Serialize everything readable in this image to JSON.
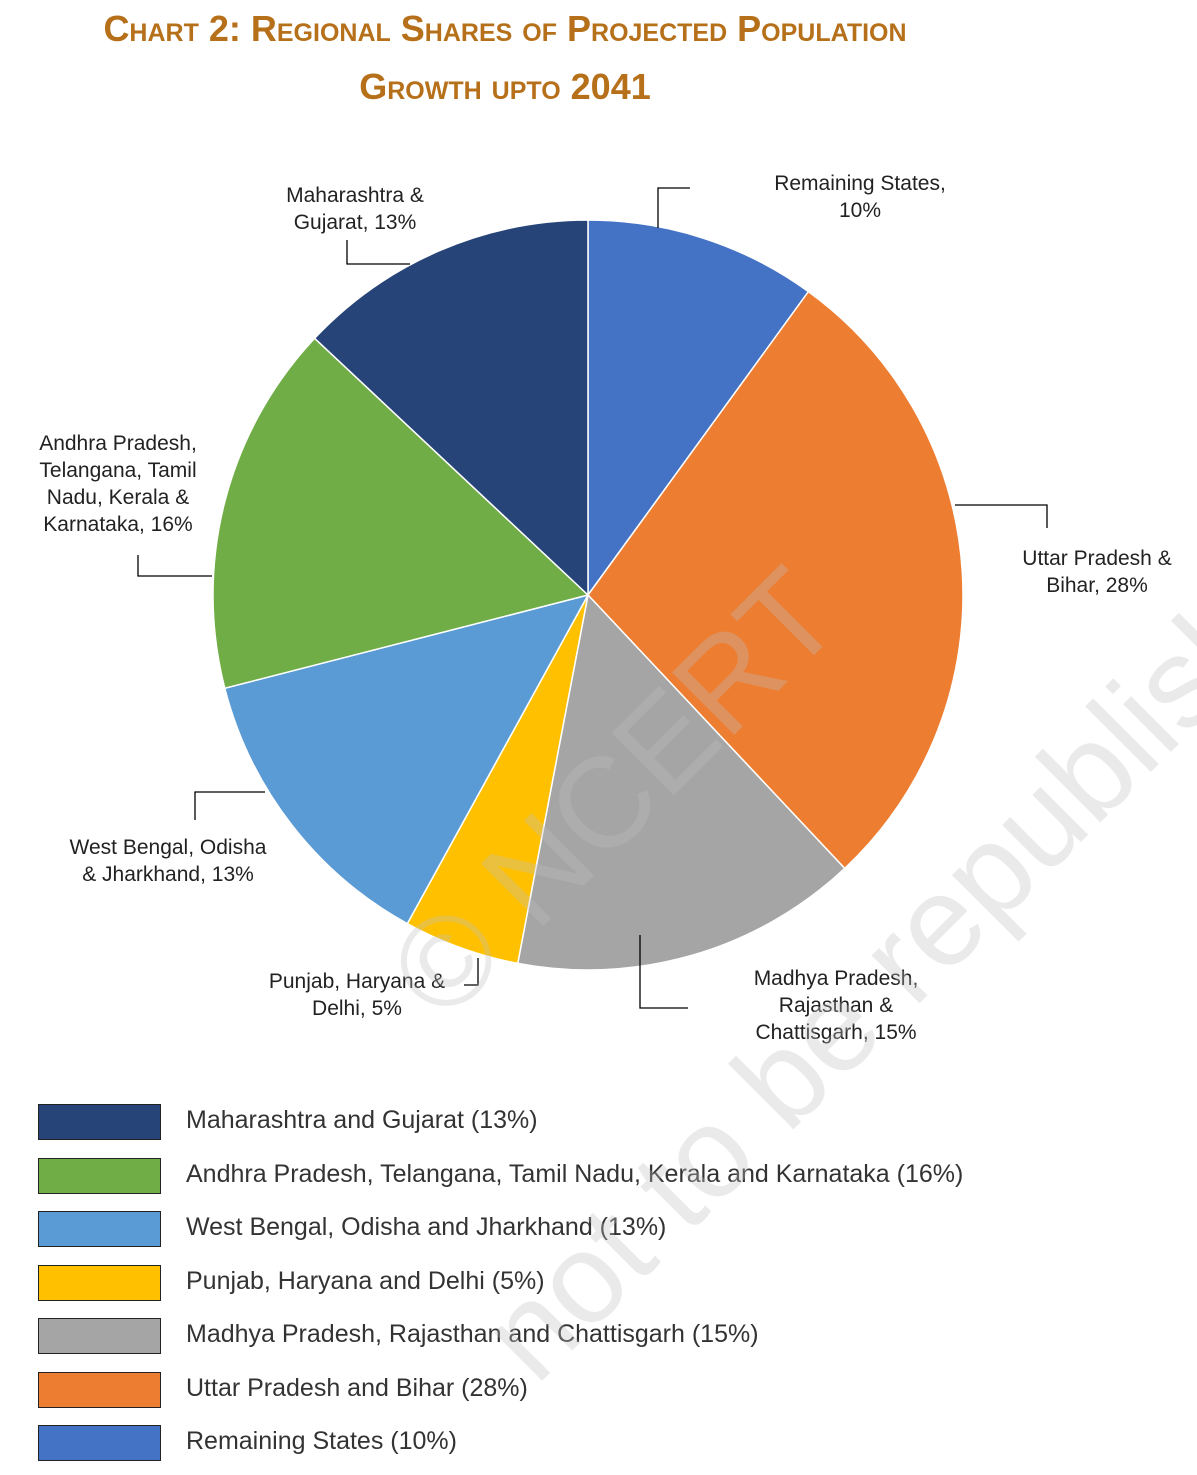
{
  "chart_data": {
    "type": "pie",
    "title_line1": "Chart 2: Regional Shares of Projected Population",
    "title_line2": "Growth upto 2041",
    "slices": [
      {
        "label_lines": [
          "Remaining States,",
          "10%"
        ],
        "value": 10,
        "color": "#4472c4",
        "legend": "Remaining States (10%)"
      },
      {
        "label_lines": [
          "Uttar Pradesh &",
          "Bihar, 28%"
        ],
        "value": 28,
        "color": "#ed7d31",
        "legend": "Uttar Pradesh and Bihar (28%)"
      },
      {
        "label_lines": [
          "Madhya Pradesh,",
          "Rajasthan &",
          "Chattisgarh, 15%"
        ],
        "value": 15,
        "color": "#a5a5a5",
        "legend": "Madhya Pradesh, Rajasthan and Chattisgarh (15%)"
      },
      {
        "label_lines": [
          "Punjab, Haryana &",
          "Delhi, 5%"
        ],
        "value": 5,
        "color": "#ffc000",
        "legend": "Punjab, Haryana and Delhi (5%)"
      },
      {
        "label_lines": [
          "West Bengal, Odisha",
          "& Jharkhand, 13%"
        ],
        "value": 13,
        "color": "#5b9bd5",
        "legend": "West Bengal, Odisha and Jharkhand (13%)"
      },
      {
        "label_lines": [
          "Andhra Pradesh,",
          "Telangana, Tamil",
          "Nadu, Kerala &",
          "Karnataka, 16%"
        ],
        "value": 16,
        "color": "#70ad47",
        "legend": "Andhra Pradesh, Telangana, Tamil Nadu, Kerala and Karnataka (16%)"
      },
      {
        "label_lines": [
          "Maharashtra &",
          "Gujarat, 13%"
        ],
        "value": 13,
        "color": "#264478",
        "legend": "Maharashtra and Gujarat (13%)"
      }
    ],
    "legend_order": [
      6,
      5,
      4,
      3,
      2,
      1,
      0
    ],
    "legend_placement": "bottom"
  },
  "watermark": {
    "line1": "© NCERT",
    "line2": "not to be republished"
  }
}
